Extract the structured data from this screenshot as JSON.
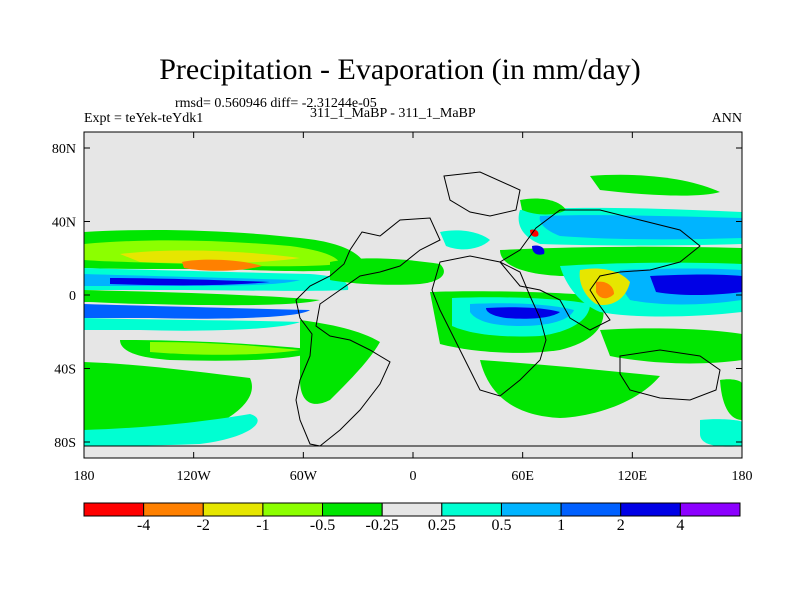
{
  "title": "Precipitation - Evaporation (in mm/day)",
  "stats": "rmsd= 0.560946 diff= -2.31244e-05",
  "experiment": "Expt = teYek-teYdk1",
  "comparison": "311_1_MaBP - 311_1_MaBP",
  "season": "ANN",
  "map": {
    "x_ticks": [
      {
        "lon": -180,
        "label": "180"
      },
      {
        "lon": -120,
        "label": "120W"
      },
      {
        "lon": -60,
        "label": "60W"
      },
      {
        "lon": 0,
        "label": "0"
      },
      {
        "lon": 60,
        "label": "60E"
      },
      {
        "lon": 120,
        "label": "120E"
      },
      {
        "lon": 180,
        "label": "180"
      }
    ],
    "y_ticks": [
      {
        "lat": 80,
        "label": "80N"
      },
      {
        "lat": 40,
        "label": "40N"
      },
      {
        "lat": 0,
        "label": "0"
      },
      {
        "lat": -40,
        "label": "40S"
      },
      {
        "lat": -80,
        "label": "80S"
      }
    ],
    "background_color": "#e6e6e6"
  },
  "colorbar": {
    "colors": [
      "#ff0000",
      "#ff8000",
      "#e6e600",
      "#8cff00",
      "#00e600",
      "#e6e6e6",
      "#00ffd2",
      "#00b4ff",
      "#0060ff",
      "#0000e6",
      "#8c00ff"
    ],
    "labels": [
      "-4",
      "-2",
      "-1",
      "-0.5",
      "-0.25",
      "0.25",
      "0.5",
      "1",
      "2",
      "4"
    ]
  }
}
